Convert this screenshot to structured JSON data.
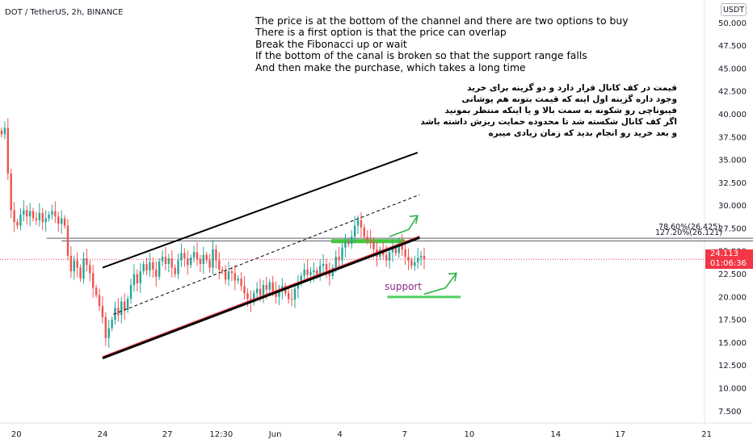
{
  "chart_data": {
    "type": "candlestick",
    "title": "DOT / TetherUS, 2h, BINANCE",
    "unit": "USDT",
    "ylim": [
      6.2,
      52.5
    ],
    "y_ticks": [
      "7.500",
      "10.000",
      "12.500",
      "15.000",
      "17.500",
      "20.000",
      "22.500",
      "25.000",
      "27.500",
      "30.000",
      "32.500",
      "35.000",
      "37.500",
      "40.000",
      "42.500",
      "45.000",
      "47.500",
      "50.000"
    ],
    "y_tick_values": [
      7.5,
      10,
      12.5,
      15,
      17.5,
      20,
      22.5,
      25,
      27.5,
      30,
      32.5,
      35,
      37.5,
      40,
      42.5,
      45,
      47.5,
      50
    ],
    "x_ticks": [
      "20",
      "24",
      "27",
      "12:30",
      "Jun",
      "4",
      "7",
      "10",
      "14",
      "17",
      "21"
    ],
    "x_tick_values": [
      -1.0,
      3.0,
      6.0,
      8.5,
      11.0,
      14.0,
      17.0,
      20.0,
      24.0,
      27.0,
      31.0
    ],
    "last_price": "24.113",
    "countdown": "01:06:36",
    "closes": [
      37.8,
      38.5,
      33.5,
      29.5,
      28.2,
      27.8,
      29.0,
      29.5,
      28.8,
      29.4,
      28.6,
      28.4,
      29.2,
      28.2,
      28.6,
      29.0,
      29.4,
      28.8,
      28.0,
      28.6,
      27.8,
      24.5,
      22.8,
      24.0,
      23.2,
      22.0,
      24.2,
      23.5,
      22.6,
      21.0,
      20.2,
      19.0,
      17.8,
      15.5,
      16.6,
      17.5,
      18.8,
      18.0,
      19.5,
      18.6,
      19.8,
      21.3,
      22.5,
      21.5,
      22.8,
      23.6,
      22.9,
      23.8,
      23.0,
      22.2,
      23.9,
      24.4,
      23.6,
      24.2,
      23.2,
      22.5,
      24.0,
      24.8,
      24.2,
      23.5,
      24.3,
      24.9,
      24.1,
      23.6,
      24.6,
      24.0,
      23.2,
      25.2,
      24.0,
      23.0,
      22.8,
      21.9,
      22.8,
      22.6,
      21.8,
      22.0,
      21.2,
      20.4,
      19.8,
      19.4,
      20.4,
      20.9,
      20.2,
      21.3,
      20.8,
      21.6,
      20.6,
      20.0,
      20.8,
      21.2,
      20.4,
      19.8,
      19.7,
      20.9,
      21.5,
      22.3,
      23.0,
      22.4,
      22.7,
      22.9,
      22.3,
      23.4,
      23.6,
      22.9,
      22.3,
      23.2,
      24.4,
      24.0,
      25.4,
      26.0,
      25.8,
      26.6,
      27.8,
      28.4,
      27.6,
      26.6,
      26.3,
      26.0,
      25.2,
      24.4,
      25.2,
      24.6,
      24.0,
      24.9,
      25.4,
      24.8,
      25.8,
      25.2,
      24.4,
      24.0,
      23.4,
      23.8,
      24.3,
      24.5,
      24.1
    ],
    "lines": [
      {
        "name": "channel-top",
        "points": [
          [
            3.0,
            23.2
          ],
          [
            17.6,
            35.8
          ]
        ]
      },
      {
        "name": "channel-bottom",
        "points": [
          [
            3.0,
            13.3
          ],
          [
            17.7,
            26.5
          ]
        ]
      },
      {
        "name": "channel-mid",
        "points": [
          [
            3.5,
            18.1
          ],
          [
            17.7,
            31.2
          ]
        ]
      },
      {
        "name": "fib-78.60",
        "points": [
          [
            0.4,
            26.425
          ],
          [
            34.0,
            26.425
          ]
        ]
      },
      {
        "name": "fib-127.20",
        "points": [
          [
            1.1,
            26.121
          ],
          [
            34.0,
            26.121
          ]
        ]
      }
    ],
    "zones": [
      {
        "name": "resistance-zone",
        "points": [
          [
            13.6,
            26.1
          ],
          [
            17.0,
            26.1
          ]
        ]
      },
      {
        "name": "support-zone",
        "points": [
          [
            16.2,
            20.0
          ],
          [
            19.6,
            20.0
          ]
        ]
      }
    ],
    "arrows": [
      {
        "name": "up-arrow-breakout",
        "points": [
          [
            16.3,
            26.6
          ],
          [
            17.2,
            27.4
          ],
          [
            17.6,
            28.9
          ]
        ]
      },
      {
        "name": "up-arrow-support",
        "points": [
          [
            17.9,
            20.3
          ],
          [
            18.9,
            21.0
          ],
          [
            19.4,
            22.6
          ]
        ]
      }
    ],
    "fib_labels": [
      "78.60%(26.425)",
      "127.20%(26.121)"
    ],
    "support_label": "support"
  },
  "annotations": {
    "english_lines": [
      "The price is at the bottom of the channel and there are two options to buy",
      "There is a first option is that the price can overlap",
      "Break the Fibonacci up or wait",
      "If the bottom of the canal is broken so that the support range falls",
      "And then make the purchase, which takes a long time"
    ],
    "persian_lines": [
      "قیمت در کف کانال قرار دارد و دو گزینه برای خرید",
      "وجود داره گزینه اول اینه که قیمت بتونه هم پوشانی",
      "فیبوناچی رو شکونه به سمت بالا و یا اینکه منتظر بمونید",
      "اگر کف کانال شکسته شد تا محدوده حمایت ریزش داشته باشد",
      "و بعد خرید رو انجام بدید که زمان زیادی میبره"
    ]
  },
  "colors": {
    "up": "#26a69a",
    "down": "#ef5350",
    "channel": "#000000",
    "support_zone": "#4fcf63",
    "resistance_zone": "#44c83c",
    "arrow": "#2fb34a",
    "price_tag": "#f23645",
    "grid_text": "#131722"
  }
}
